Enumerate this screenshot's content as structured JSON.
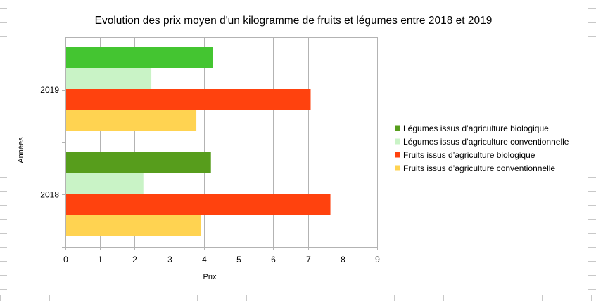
{
  "chart_data": {
    "type": "bar",
    "orientation": "horizontal",
    "title": "Evolution des prix moyen d'un kilogramme de fruits et légumes entre 2018 et 2019",
    "xlabel": "Prix",
    "ylabel": "Années",
    "xlim": [
      0,
      9
    ],
    "xticks": [
      "0",
      "1",
      "2",
      "3",
      "4",
      "5",
      "6",
      "7",
      "8",
      "9"
    ],
    "categories": [
      "2019",
      "2018"
    ],
    "grid": true,
    "legend_position": "right",
    "series": [
      {
        "name": "Légumes issus d’agriculture biologique",
        "values": [
          4.25,
          4.2
        ],
        "colors": [
          "#44c531",
          "#579d1c"
        ]
      },
      {
        "name": "Légumes issus d’agriculture conventionnelle",
        "values": [
          2.48,
          2.25
        ],
        "colors": [
          "#c9f3c6",
          "#c9f3c6"
        ]
      },
      {
        "name": "Fruits issus d’agriculture biologique",
        "values": [
          7.08,
          7.65
        ],
        "colors": [
          "#ff420e",
          "#ff420e"
        ]
      },
      {
        "name": "Fruits issus d’agriculture conventionnelle",
        "values": [
          3.78,
          3.92
        ],
        "colors": [
          "#ffd351",
          "#ffd351"
        ]
      }
    ],
    "legend_colors": [
      "#579d1c",
      "#c9f3c6",
      "#ff420e",
      "#ffd351"
    ]
  }
}
